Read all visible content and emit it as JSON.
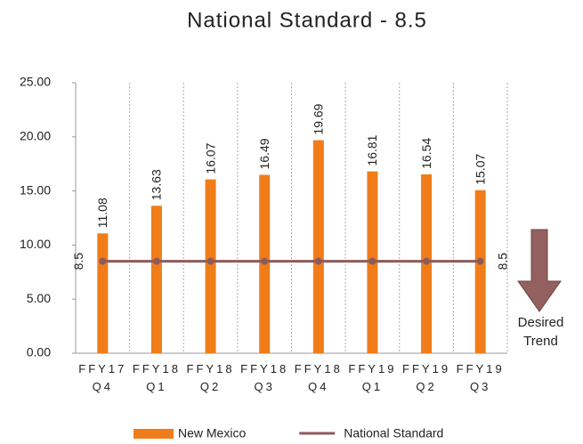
{
  "chart_data": {
    "type": "bar",
    "title": "National Standard - 8.5",
    "categories": [
      "FFY17 Q4",
      "FFY18 Q1",
      "FFY18 Q2",
      "FFY18 Q3",
      "FFY18 Q4",
      "FFY19 Q1",
      "FFY19 Q2",
      "FFY19 Q3"
    ],
    "series": [
      {
        "name": "New Mexico",
        "type": "bar",
        "color": "#f07d1a",
        "values": [
          11.08,
          13.63,
          16.07,
          16.49,
          19.69,
          16.81,
          16.54,
          15.07
        ]
      },
      {
        "name": "National Standard",
        "type": "line",
        "color": "#8e5b5b",
        "values": [
          8.5,
          8.5,
          8.5,
          8.5,
          8.5,
          8.5,
          8.5,
          8.5
        ]
      }
    ],
    "ylim": [
      0,
      25
    ],
    "yticks": [
      {
        "value": 0,
        "label": "0.00"
      },
      {
        "value": 5,
        "label": "5.00"
      },
      {
        "value": 10,
        "label": "10.00"
      },
      {
        "value": 15,
        "label": "15.00"
      },
      {
        "value": 20,
        "label": "20.00"
      },
      {
        "value": 25,
        "label": "25.00"
      }
    ],
    "annotation": "Desired Trend",
    "legend": "bottom"
  }
}
